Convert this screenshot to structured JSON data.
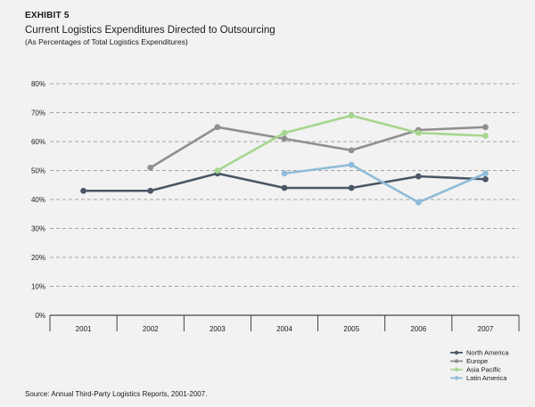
{
  "header": {
    "exhibit": "EXHIBIT 5",
    "title": "Current Logistics Expenditures Directed to Outsourcing",
    "subtitle": "(As Percentages of Total Logistics Expenditures)"
  },
  "footer": {
    "source": "Source: Annual Third-Party Logistics Reports, 2001-2007."
  },
  "colors": {
    "north_america": "#4a5766",
    "europe": "#8f8f8f",
    "asia_pacific": "#a6d68f",
    "latin_america": "#8fbcd9",
    "grid": "#8a8a8a",
    "axis": "#1a1a1a"
  },
  "chart_data": {
    "type": "line",
    "title": "Current Logistics Expenditures Directed to Outsourcing",
    "subtitle": "(As Percentages of Total Logistics Expenditures)",
    "xlabel": "",
    "ylabel": "",
    "categories": [
      "2001",
      "2002",
      "2003",
      "2004",
      "2005",
      "2006",
      "2007"
    ],
    "ylim": [
      0,
      80
    ],
    "yticks": [
      0,
      10,
      20,
      30,
      40,
      50,
      60,
      70,
      80
    ],
    "ytick_labels": [
      "0%",
      "10%",
      "20%",
      "30%",
      "40%",
      "50%",
      "60%",
      "70%",
      "80%"
    ],
    "grid": true,
    "legend_position": "bottom-right",
    "series": [
      {
        "name": "North America",
        "color": "#4a5766",
        "values": [
          43,
          43,
          49,
          44,
          44,
          48,
          47
        ]
      },
      {
        "name": "Europe",
        "color": "#8f8f8f",
        "values": [
          null,
          51,
          65,
          61,
          57,
          64,
          65
        ]
      },
      {
        "name": "Asia Pacific",
        "color": "#a6d68f",
        "values": [
          null,
          null,
          50,
          63,
          69,
          63,
          62
        ]
      },
      {
        "name": "Latin America",
        "color": "#8fbcd9",
        "values": [
          null,
          null,
          null,
          49,
          52,
          39,
          49
        ]
      }
    ]
  }
}
